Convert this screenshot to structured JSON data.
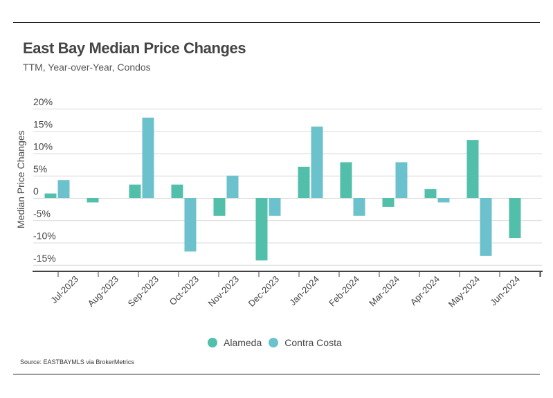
{
  "header": {
    "title": "East Bay Median Price Changes",
    "subtitle": "TTM, Year-over-Year, Condos"
  },
  "footer": {
    "source": "Source:  EASTBAYMLS via BrokerMetrics"
  },
  "colors": {
    "alameda": "#52bfaa",
    "contra_costa": "#6cc2cc",
    "grid": "#d9d9d9",
    "axis": "#444444"
  },
  "chart_data": {
    "type": "bar",
    "title": "East Bay Median Price Changes",
    "subtitle": "TTM, Year-over-Year, Condos",
    "xlabel": "",
    "ylabel": "Median Price Changes",
    "ylim": [
      -16,
      20
    ],
    "yticks": [
      20,
      15,
      10,
      5,
      0,
      -5,
      -10,
      -15
    ],
    "ytick_labels": [
      "20%",
      "15%",
      "10%",
      "5%",
      "0",
      "-5%",
      "-10%",
      "-15%"
    ],
    "grid": true,
    "legend_position": "bottom-center",
    "categories": [
      "Jul-2023",
      "Aug-2023",
      "Sep-2023",
      "Oct-2023",
      "Nov-2023",
      "Dec-2023",
      "Jan-2024",
      "Feb-2024",
      "Mar-2024",
      "Apr-2024",
      "May-2024",
      "Jun-2024"
    ],
    "series": [
      {
        "name": "Alameda",
        "values": [
          1,
          -1,
          3,
          3,
          -4,
          -14,
          7,
          8,
          -2,
          2,
          13,
          -9
        ]
      },
      {
        "name": "Contra Costa",
        "values": [
          4,
          0,
          18,
          -12,
          5,
          -4,
          16,
          -4,
          8,
          -1,
          -13,
          0
        ]
      }
    ]
  }
}
